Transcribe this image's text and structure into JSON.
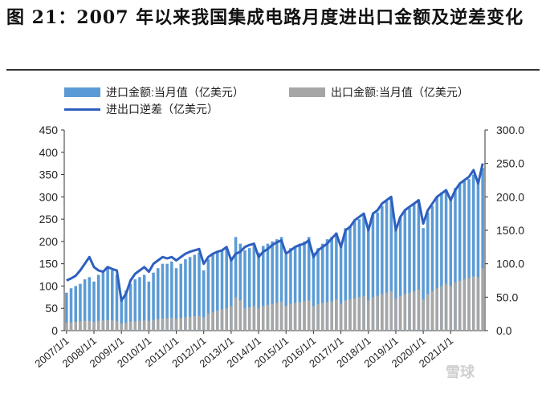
{
  "title": "图 21：2007 年以来我国集成电路月度进出口金额及逆差变化",
  "chart_data": {
    "type": "bar",
    "series": [
      {
        "name": "进口金额:当月值（亿美元）",
        "kind": "bar",
        "axis": "left",
        "color": "#5b9bd5"
      },
      {
        "name": "出口金额:当月值（亿美元）",
        "kind": "bar",
        "axis": "left",
        "color": "#a6a6a6"
      },
      {
        "name": "进出口逆差（亿美元）",
        "kind": "line",
        "axis": "right",
        "color": "#2e5fbf"
      }
    ],
    "left_axis": {
      "min": 0,
      "max": 450,
      "ticks": [
        "0",
        "50",
        "100",
        "150",
        "200",
        "250",
        "300",
        "350",
        "400",
        "450"
      ]
    },
    "right_axis": {
      "min": 0,
      "max": 300,
      "ticks": [
        "0.0",
        "50.0",
        "100.0",
        "150.0",
        "200.0",
        "250.0",
        "300.0"
      ]
    },
    "x_ticks": [
      "2007/1/1",
      "2008/1/1",
      "2009/1/1",
      "2010/1/1",
      "2011/1/1",
      "2012/1/1",
      "2013/1/1",
      "2014/1/1",
      "2015/1/1",
      "2016/1/1",
      "2017/1/1",
      "2018/1/1",
      "2019/1/1",
      "2020/1/1",
      "2021/1/1"
    ],
    "x": [
      "2007-01",
      "2007-03",
      "2007-05",
      "2007-07",
      "2007-09",
      "2007-11",
      "2008-01",
      "2008-03",
      "2008-05",
      "2008-07",
      "2008-09",
      "2008-11",
      "2009-01",
      "2009-03",
      "2009-05",
      "2009-07",
      "2009-09",
      "2009-11",
      "2010-01",
      "2010-03",
      "2010-05",
      "2010-07",
      "2010-09",
      "2010-11",
      "2011-01",
      "2011-03",
      "2011-05",
      "2011-07",
      "2011-09",
      "2011-11",
      "2012-01",
      "2012-03",
      "2012-05",
      "2012-07",
      "2012-09",
      "2012-11",
      "2013-01",
      "2013-03",
      "2013-05",
      "2013-07",
      "2013-09",
      "2013-11",
      "2014-01",
      "2014-03",
      "2014-05",
      "2014-07",
      "2014-09",
      "2014-11",
      "2015-01",
      "2015-03",
      "2015-05",
      "2015-07",
      "2015-09",
      "2015-11",
      "2016-01",
      "2016-03",
      "2016-05",
      "2016-07",
      "2016-09",
      "2016-11",
      "2017-01",
      "2017-03",
      "2017-05",
      "2017-07",
      "2017-09",
      "2017-11",
      "2018-01",
      "2018-03",
      "2018-05",
      "2018-07",
      "2018-09",
      "2018-11",
      "2019-01",
      "2019-03",
      "2019-05",
      "2019-07",
      "2019-09",
      "2019-11",
      "2020-01",
      "2020-03",
      "2020-05",
      "2020-07",
      "2020-09",
      "2020-11",
      "2021-01",
      "2021-03",
      "2021-05",
      "2021-07",
      "2021-09",
      "2021-11",
      "2022-01",
      "2022-03"
    ],
    "import": [
      85,
      95,
      100,
      105,
      115,
      120,
      110,
      125,
      130,
      140,
      135,
      125,
      75,
      90,
      105,
      115,
      120,
      125,
      110,
      130,
      140,
      150,
      150,
      155,
      140,
      150,
      160,
      165,
      170,
      175,
      135,
      160,
      170,
      175,
      180,
      185,
      165,
      210,
      195,
      180,
      185,
      190,
      175,
      190,
      195,
      200,
      205,
      210,
      170,
      185,
      190,
      195,
      200,
      210,
      175,
      185,
      195,
      205,
      210,
      220,
      195,
      230,
      235,
      245,
      250,
      260,
      230,
      260,
      265,
      280,
      290,
      295,
      225,
      255,
      270,
      275,
      285,
      290,
      230,
      265,
      280,
      300,
      310,
      315,
      300,
      320,
      330,
      335,
      340,
      350,
      335,
      365
    ],
    "export": [
      18,
      19,
      20,
      21,
      22,
      22,
      20,
      22,
      23,
      24,
      23,
      22,
      16,
      18,
      20,
      21,
      22,
      23,
      22,
      24,
      26,
      27,
      28,
      29,
      26,
      28,
      30,
      31,
      32,
      33,
      30,
      38,
      42,
      45,
      48,
      50,
      55,
      75,
      68,
      50,
      52,
      55,
      50,
      55,
      58,
      60,
      62,
      65,
      55,
      60,
      62,
      64,
      66,
      68,
      55,
      60,
      62,
      64,
      66,
      70,
      60,
      68,
      70,
      72,
      75,
      78,
      68,
      75,
      78,
      82,
      85,
      88,
      72,
      78,
      82,
      85,
      88,
      92,
      70,
      82,
      88,
      95,
      100,
      105,
      100,
      108,
      112,
      115,
      118,
      122,
      120,
      140
    ],
    "deficit": [
      75,
      78,
      82,
      90,
      100,
      110,
      95,
      90,
      88,
      95,
      92,
      90,
      45,
      55,
      75,
      85,
      90,
      95,
      88,
      100,
      105,
      110,
      108,
      110,
      105,
      110,
      115,
      118,
      120,
      122,
      100,
      110,
      115,
      118,
      120,
      125,
      105,
      115,
      118,
      125,
      128,
      130,
      110,
      118,
      122,
      128,
      132,
      135,
      115,
      120,
      125,
      128,
      130,
      135,
      110,
      120,
      125,
      130,
      138,
      145,
      125,
      150,
      155,
      165,
      170,
      175,
      150,
      175,
      180,
      190,
      195,
      200,
      150,
      170,
      180,
      185,
      190,
      195,
      160,
      180,
      190,
      200,
      205,
      210,
      195,
      210,
      220,
      225,
      230,
      240,
      220,
      250
    ]
  },
  "watermark": "雪球"
}
